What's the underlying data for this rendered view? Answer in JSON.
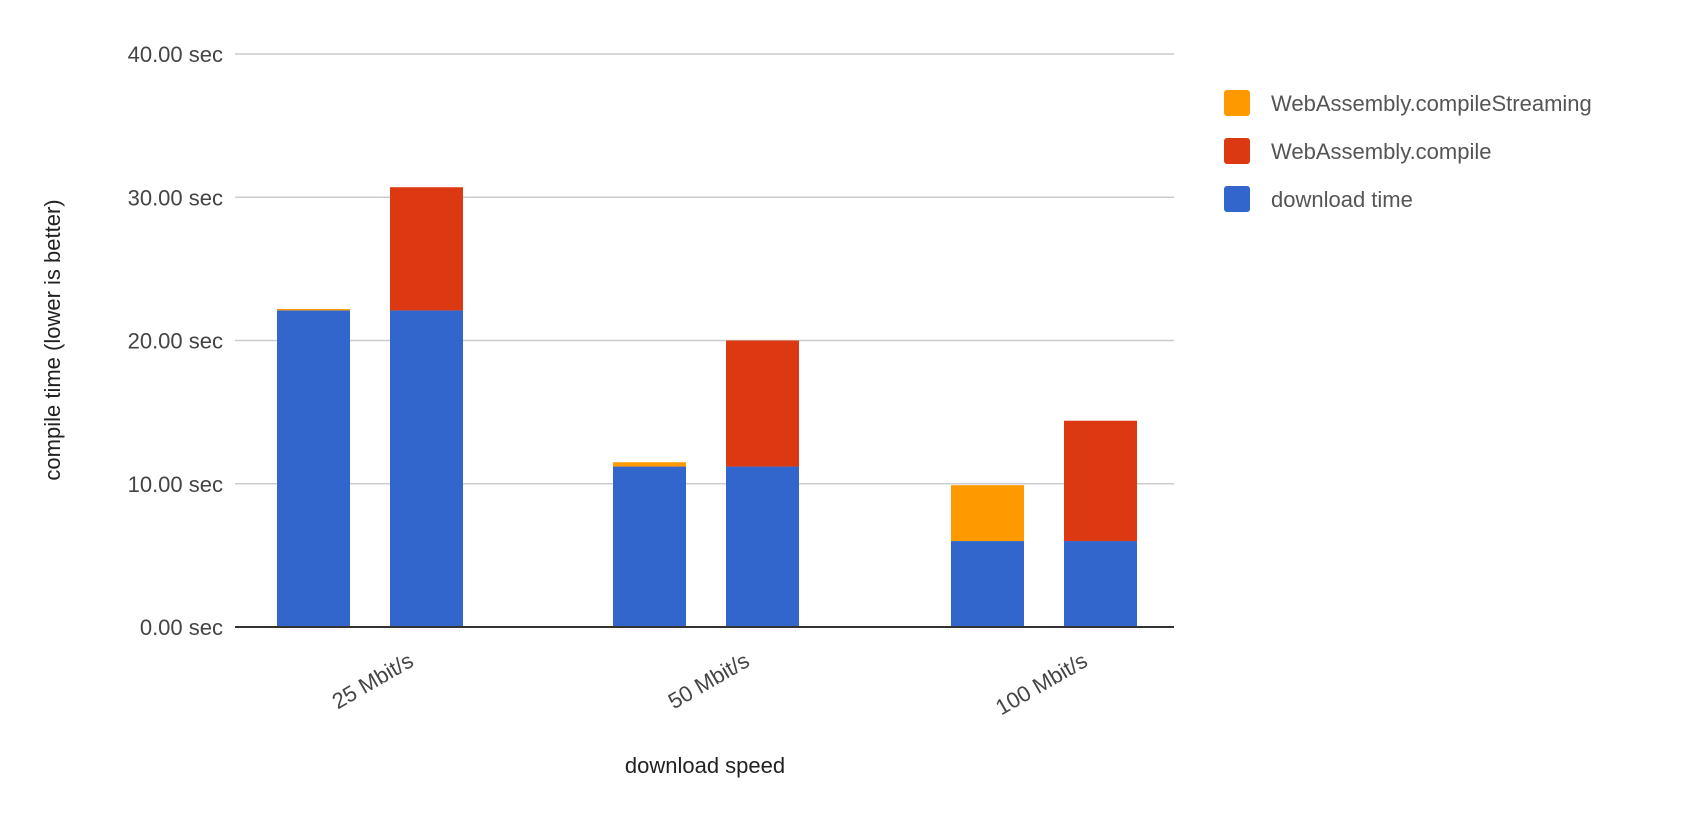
{
  "chart_data": {
    "type": "bar",
    "stacked": true,
    "title": "",
    "xlabel": "download speed",
    "ylabel": "compile time (lower is better)",
    "ylim": [
      0,
      40
    ],
    "yticks": [
      "0.00 sec",
      "10.00 sec",
      "20.00 sec",
      "30.00 sec",
      "40.00 sec"
    ],
    "ytick_values": [
      0,
      10,
      20,
      30,
      40
    ],
    "grid": true,
    "legend_position": "right",
    "categories": [
      "25 Mbit/s",
      "50 Mbit/s",
      "100 Mbit/s"
    ],
    "legend": [
      {
        "name": "WebAssembly.compileStreaming",
        "color": "#ff9900"
      },
      {
        "name": "WebAssembly.compile",
        "color": "#dc3912"
      },
      {
        "name": "download time",
        "color": "#3366cc"
      }
    ],
    "bars": [
      {
        "category": "25 Mbit/s",
        "download time": 22.1,
        "WebAssembly.compileStreaming": 0.1,
        "WebAssembly.compile": 0
      },
      {
        "category": "25 Mbit/s",
        "download time": 22.1,
        "WebAssembly.compileStreaming": 0,
        "WebAssembly.compile": 8.6
      },
      {
        "category": "50 Mbit/s",
        "download time": 11.2,
        "WebAssembly.compileStreaming": 0.3,
        "WebAssembly.compile": 0
      },
      {
        "category": "50 Mbit/s",
        "download time": 11.2,
        "WebAssembly.compileStreaming": 0,
        "WebAssembly.compile": 8.8
      },
      {
        "category": "100 Mbit/s",
        "download time": 6.0,
        "WebAssembly.compileStreaming": 3.9,
        "WebAssembly.compile": 0
      },
      {
        "category": "100 Mbit/s",
        "download time": 6.0,
        "WebAssembly.compileStreaming": 0,
        "WebAssembly.compile": 8.4
      }
    ]
  }
}
